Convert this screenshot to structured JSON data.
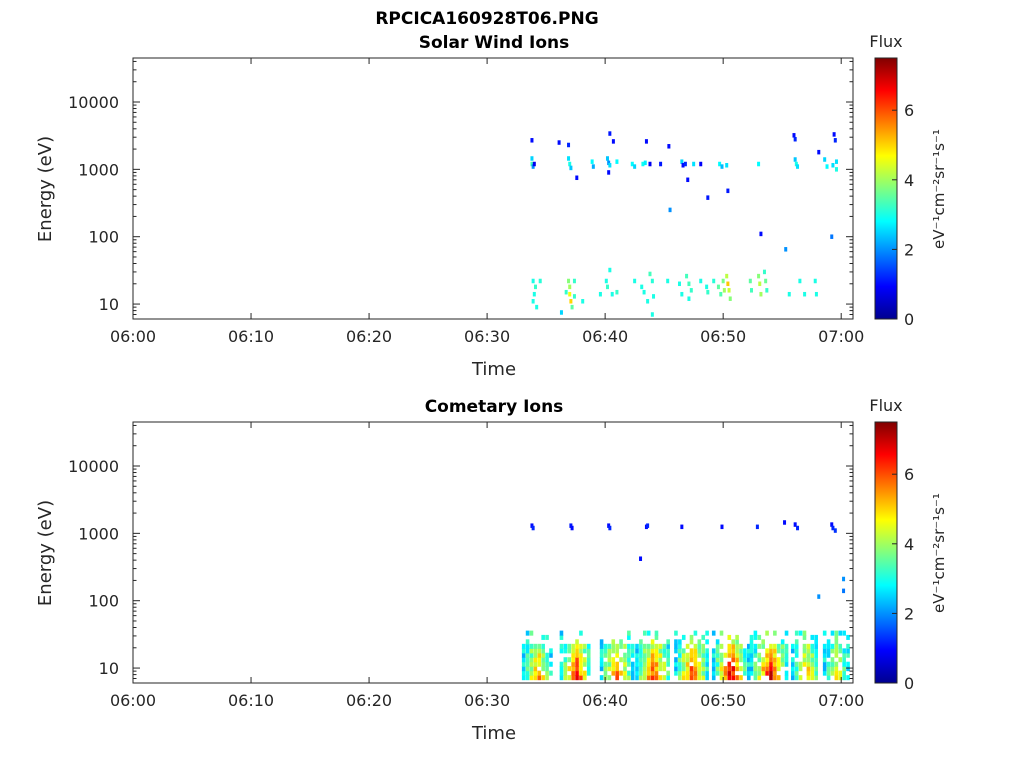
{
  "figure_title": "RPCICA160928T06.PNG",
  "colorscale": [
    "#00008f",
    "#0000ff",
    "#0080ff",
    "#00ffff",
    "#80ff80",
    "#ffff00",
    "#ff8000",
    "#ff0000",
    "#800000"
  ],
  "chart_data": [
    {
      "type": "heatmap",
      "title": "Solar Wind Ions",
      "xlabel": "Time",
      "ylabel": "Energy (eV)",
      "x_ticks": [
        "06:00",
        "06:10",
        "06:20",
        "06:30",
        "06:40",
        "06:50",
        "07:00"
      ],
      "x_tick_minutes": [
        0,
        10,
        20,
        30,
        40,
        50,
        60
      ],
      "xlim_minutes": [
        0,
        61
      ],
      "y_scale": "log",
      "ylim": [
        6,
        45000
      ],
      "y_ticks": [
        "10",
        "100",
        "1000",
        "10000"
      ],
      "y_tick_values": [
        10,
        100,
        1000,
        10000
      ],
      "colorbar": {
        "title": "Flux",
        "unit": "eV⁻¹cm⁻²sr⁻¹s⁻¹",
        "ticks": [
          "0",
          "2",
          "4",
          "6"
        ],
        "tick_values": [
          0,
          2,
          4,
          6
        ],
        "range": [
          0,
          7.5
        ]
      },
      "cells": [
        [
          33.8,
          2700,
          1.0
        ],
        [
          33.8,
          1450,
          2.5
        ],
        [
          33.8,
          1200,
          3.3
        ],
        [
          33.9,
          1100,
          2.0
        ],
        [
          34.0,
          1200,
          0.8
        ],
        [
          36.1,
          2500,
          1.0
        ],
        [
          36.9,
          2300,
          1.2
        ],
        [
          36.9,
          1450,
          2.6
        ],
        [
          37.0,
          1200,
          3.0
        ],
        [
          37.1,
          1050,
          2.4
        ],
        [
          37.6,
          750,
          1.0
        ],
        [
          38.9,
          1300,
          2.8
        ],
        [
          39.0,
          1100,
          2.2
        ],
        [
          40.2,
          1450,
          2.4
        ],
        [
          40.3,
          1250,
          2.0
        ],
        [
          40.3,
          900,
          1.0
        ],
        [
          40.4,
          1150,
          2.6
        ],
        [
          40.4,
          3400,
          1.1
        ],
        [
          40.7,
          2600,
          1.0
        ],
        [
          41.0,
          1300,
          2.8
        ],
        [
          42.3,
          1200,
          2.8
        ],
        [
          42.5,
          1100,
          2.5
        ],
        [
          43.2,
          1200,
          2.9
        ],
        [
          43.4,
          1250,
          2.7
        ],
        [
          43.5,
          2600,
          1.0
        ],
        [
          43.8,
          1200,
          0.8
        ],
        [
          44.7,
          1200,
          1.1
        ],
        [
          45.4,
          2200,
          1.0
        ],
        [
          46.5,
          1300,
          2.5
        ],
        [
          46.6,
          1150,
          1.0
        ],
        [
          46.8,
          1200,
          1.2
        ],
        [
          47.5,
          1200,
          2.6
        ],
        [
          48.1,
          1200,
          0.9
        ],
        [
          47.0,
          700,
          1.0
        ],
        [
          48.7,
          380,
          1.1
        ],
        [
          50.4,
          480,
          1.1
        ],
        [
          45.5,
          250,
          2.0
        ],
        [
          49.7,
          1200,
          2.8
        ],
        [
          49.9,
          1100,
          2.3
        ],
        [
          50.3,
          1150,
          2.6
        ],
        [
          53.0,
          1200,
          2.8
        ],
        [
          53.2,
          110,
          1.0
        ],
        [
          55.3,
          65,
          2.0
        ],
        [
          56.0,
          3200,
          1.0
        ],
        [
          56.1,
          2800,
          1.2
        ],
        [
          56.1,
          1400,
          2.4
        ],
        [
          56.2,
          1200,
          3.0
        ],
        [
          56.3,
          1100,
          2.6
        ],
        [
          58.1,
          1800,
          1.0
        ],
        [
          58.6,
          1400,
          2.5
        ],
        [
          58.8,
          1100,
          2.8
        ],
        [
          59.3,
          1150,
          2.6
        ],
        [
          59.4,
          3300,
          1.0
        ],
        [
          59.5,
          2700,
          1.2
        ],
        [
          59.6,
          1300,
          2.6
        ],
        [
          59.6,
          1000,
          3.0
        ],
        [
          59.2,
          100,
          1.8
        ],
        [
          33.9,
          22,
          3.0
        ],
        [
          34.1,
          18,
          3.2
        ],
        [
          34.0,
          14,
          3.0
        ],
        [
          33.9,
          11,
          3.0
        ],
        [
          34.2,
          9,
          3.0
        ],
        [
          36.3,
          7.5,
          2.5
        ],
        [
          34.5,
          22,
          3.1
        ],
        [
          36.7,
          15,
          3.2
        ],
        [
          36.9,
          22,
          3.8
        ],
        [
          37.0,
          18,
          4.0
        ],
        [
          37.0,
          14,
          4.6
        ],
        [
          37.1,
          11,
          5.0
        ],
        [
          37.2,
          9,
          3.5
        ],
        [
          37.4,
          22,
          3.2
        ],
        [
          37.4,
          13,
          3.2
        ],
        [
          38.1,
          11,
          3.0
        ],
        [
          39.6,
          14,
          3.0
        ],
        [
          40.1,
          22,
          3.0
        ],
        [
          40.2,
          18,
          3.2
        ],
        [
          40.4,
          32,
          3.0
        ],
        [
          40.6,
          14,
          3.0
        ],
        [
          41.0,
          15,
          3.2
        ],
        [
          42.5,
          22,
          3.0
        ],
        [
          43.1,
          18,
          3.0
        ],
        [
          43.3,
          15,
          3.0
        ],
        [
          43.6,
          11,
          3.0
        ],
        [
          43.8,
          28,
          3.3
        ],
        [
          44.0,
          22,
          3.1
        ],
        [
          44.1,
          13,
          3.0
        ],
        [
          44.0,
          7,
          3.0
        ],
        [
          45.3,
          22,
          3.0
        ],
        [
          46.3,
          20,
          3.0
        ],
        [
          46.5,
          14,
          3.0
        ],
        [
          46.9,
          26,
          3.3
        ],
        [
          47.1,
          20,
          3.3
        ],
        [
          47.3,
          16,
          3.2
        ],
        [
          47.1,
          12,
          3.0
        ],
        [
          48.1,
          22,
          3.0
        ],
        [
          48.6,
          18,
          3.0
        ],
        [
          48.7,
          15,
          3.2
        ],
        [
          49.2,
          22,
          3.1
        ],
        [
          49.6,
          18,
          3.5
        ],
        [
          49.8,
          14,
          3.4
        ],
        [
          50.0,
          22,
          3.7
        ],
        [
          50.1,
          16,
          4.0
        ],
        [
          50.3,
          26,
          4.2
        ],
        [
          50.4,
          20,
          5.1
        ],
        [
          50.5,
          16,
          4.3
        ],
        [
          50.6,
          12,
          3.8
        ],
        [
          52.3,
          22,
          3.5
        ],
        [
          52.4,
          16,
          3.3
        ],
        [
          53.0,
          26,
          3.8
        ],
        [
          53.1,
          20,
          4.2
        ],
        [
          53.2,
          14,
          4.0
        ],
        [
          53.5,
          30,
          3.2
        ],
        [
          53.6,
          22,
          3.6
        ],
        [
          53.7,
          16,
          3.2
        ],
        [
          55.6,
          14,
          3.0
        ],
        [
          56.5,
          22,
          3.0
        ],
        [
          56.9,
          14,
          3.0
        ],
        [
          57.8,
          22,
          3.0
        ],
        [
          57.9,
          14,
          3.0
        ]
      ]
    },
    {
      "type": "heatmap",
      "title": "Cometary Ions",
      "xlabel": "Time",
      "ylabel": "Energy (eV)",
      "x_ticks": [
        "06:00",
        "06:10",
        "06:20",
        "06:30",
        "06:40",
        "06:50",
        "07:00"
      ],
      "x_tick_minutes": [
        0,
        10,
        20,
        30,
        40,
        50,
        60
      ],
      "xlim_minutes": [
        0,
        61
      ],
      "y_scale": "log",
      "ylim": [
        6,
        45000
      ],
      "y_ticks": [
        "10",
        "100",
        "1000",
        "10000"
      ],
      "y_tick_values": [
        10,
        100,
        1000,
        10000
      ],
      "colorbar": {
        "title": "Flux",
        "unit": "eV⁻¹cm⁻²sr⁻¹s⁻¹",
        "ticks": [
          "0",
          "2",
          "4",
          "6"
        ],
        "tick_values": [
          0,
          2,
          4,
          6
        ],
        "range": [
          0,
          7.5
        ]
      },
      "cells": [
        [
          33.8,
          1300,
          1.0
        ],
        [
          33.9,
          1200,
          1.2
        ],
        [
          37.1,
          1300,
          1.1
        ],
        [
          37.2,
          1200,
          1.0
        ],
        [
          40.3,
          1300,
          1.0
        ],
        [
          40.4,
          1200,
          1.2
        ],
        [
          43.5,
          1250,
          1.0
        ],
        [
          43.6,
          1300,
          1.2
        ],
        [
          46.5,
          1250,
          1.0
        ],
        [
          49.9,
          1250,
          1.0
        ],
        [
          52.9,
          1250,
          1.2
        ],
        [
          55.2,
          1450,
          1.0
        ],
        [
          56.1,
          1350,
          1.0
        ],
        [
          56.3,
          1200,
          1.2
        ],
        [
          59.2,
          1350,
          1.0
        ],
        [
          59.3,
          1200,
          1.2
        ],
        [
          59.5,
          1100,
          1.3
        ],
        [
          43.0,
          420,
          1.0
        ],
        [
          60.2,
          210,
          2.0
        ],
        [
          60.2,
          140,
          1.8
        ],
        [
          58.1,
          115,
          2.0
        ]
      ],
      "bursts": [
        {
          "start": 33.1,
          "end": 35.5,
          "peak": 5.8
        },
        {
          "start": 36.3,
          "end": 38.9,
          "peak": 6.8
        },
        {
          "start": 39.7,
          "end": 42.4,
          "peak": 6.2
        },
        {
          "start": 42.7,
          "end": 45.6,
          "peak": 6.5
        },
        {
          "start": 46.0,
          "end": 48.8,
          "peak": 6.6
        },
        {
          "start": 49.2,
          "end": 52.2,
          "peak": 7.2
        },
        {
          "start": 52.4,
          "end": 55.6,
          "peak": 7.0
        },
        {
          "start": 55.9,
          "end": 58.2,
          "peak": 5.6
        },
        {
          "start": 58.6,
          "end": 60.8,
          "peak": 4.6
        }
      ]
    }
  ]
}
